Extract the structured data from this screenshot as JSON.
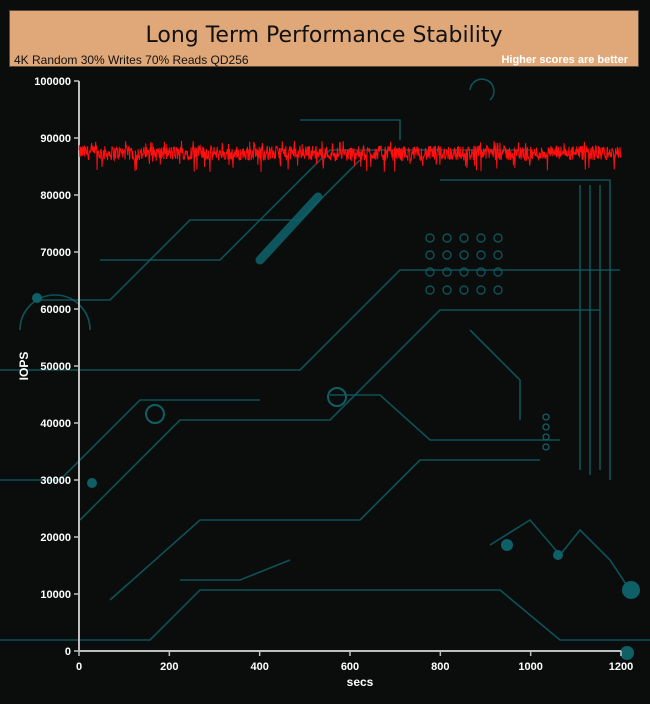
{
  "header": {
    "title": "Long Term Performance Stability",
    "subtitle": "4K Random 30% Writes 70% Reads QD256",
    "note": "Higher scores are better"
  },
  "colors": {
    "header_bg": "#e0a878",
    "series_line": "#ff1010",
    "axis": "#c0c0c0",
    "background": "#0b0c0c",
    "circuit": "#0f5f66"
  },
  "chart_data": {
    "type": "line",
    "title": "Long Term Performance Stability",
    "subtitle": "4K Random 30% Writes 70% Reads QD256",
    "xlabel": "secs",
    "ylabel": "IOPS",
    "xlim": [
      0,
      1200
    ],
    "ylim": [
      0,
      100000
    ],
    "x_ticks": [
      0,
      200,
      400,
      600,
      800,
      1000,
      1200
    ],
    "y_ticks": [
      0,
      10000,
      20000,
      30000,
      40000,
      50000,
      60000,
      70000,
      80000,
      90000,
      100000
    ],
    "grid": false,
    "legend": "none",
    "series": [
      {
        "color": "#ff1010",
        "x": [
          0,
          50,
          100,
          150,
          200,
          250,
          300,
          350,
          400,
          450,
          500,
          550,
          600,
          650,
          700,
          750,
          800,
          850,
          900,
          950,
          1000,
          1050,
          1100,
          1150,
          1200
        ],
        "values": [
          87500,
          87300,
          87400,
          87200,
          87300,
          87500,
          87300,
          87200,
          87400,
          87300,
          87500,
          87300,
          87200,
          87400,
          87300,
          87200,
          87400,
          87300,
          87500,
          87300,
          87200,
          87400,
          87300,
          87400,
          87200
        ],
        "min_observed": 84000,
        "max_observed": 89500
      }
    ]
  }
}
